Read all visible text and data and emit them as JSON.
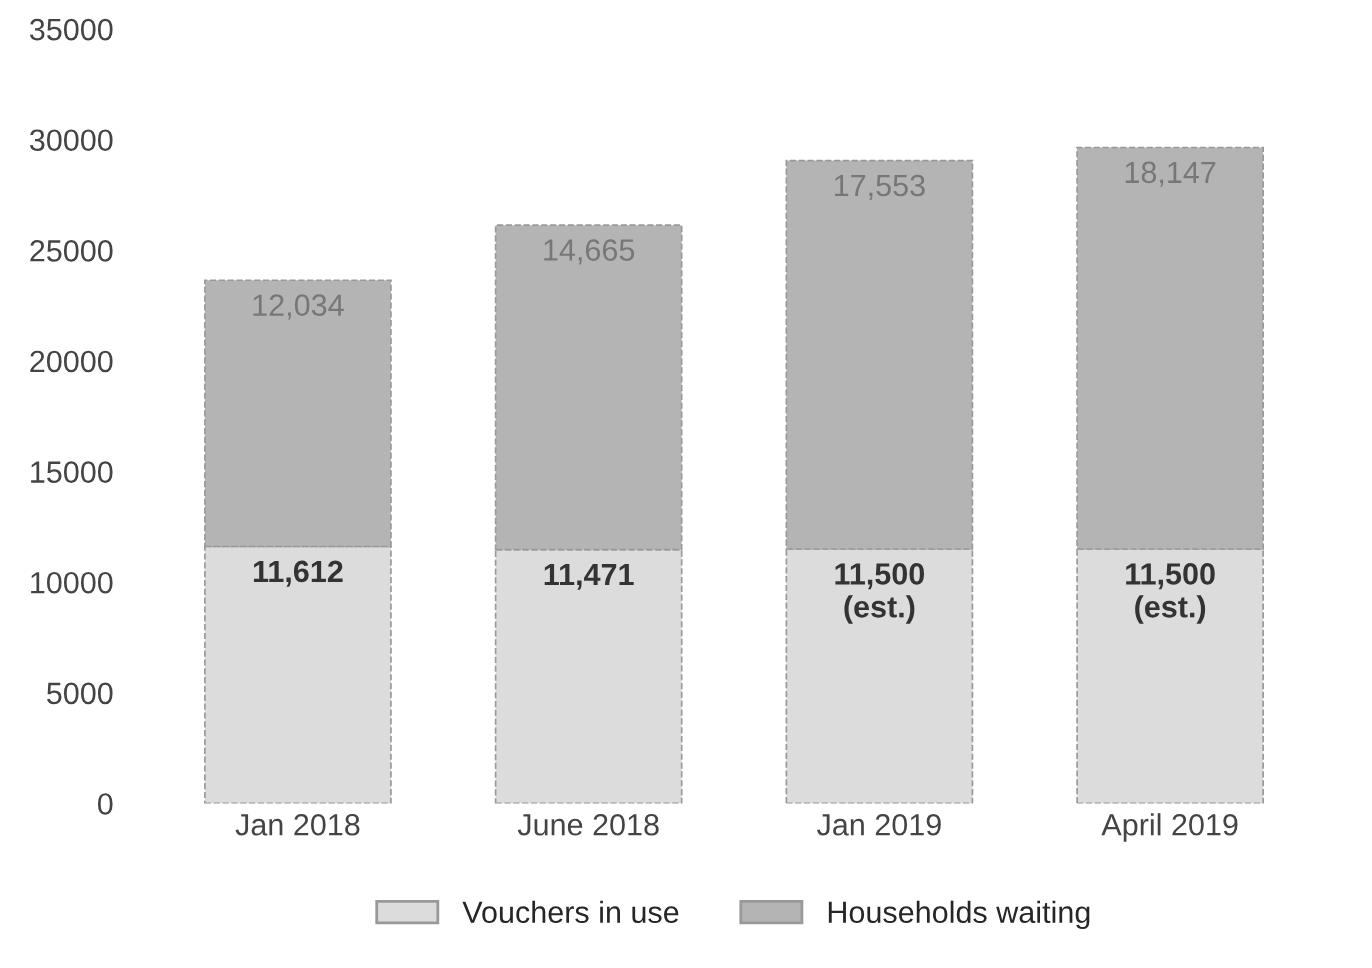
{
  "chart_data": {
    "type": "bar",
    "stacked": true,
    "categories": [
      "Jan 2018",
      "June 2018",
      "Jan 2019",
      "April 2019"
    ],
    "series": [
      {
        "name": "Vouchers in use",
        "color": "#dcdcdc",
        "values": [
          11612,
          11471,
          11500,
          11500
        ],
        "value_labels": [
          "11,612",
          "11,471",
          "11,500\n(est.)",
          "11,500\n(est.)"
        ]
      },
      {
        "name": "Households waiting",
        "color": "#b4b4b4",
        "values": [
          12034,
          14665,
          17553,
          18147
        ],
        "value_labels": [
          "12,034",
          "14,665",
          "17,553",
          "18,147"
        ]
      }
    ],
    "ylim": [
      0,
      35000
    ],
    "yticks": [
      0,
      5000,
      10000,
      15000,
      20000,
      25000,
      30000,
      35000
    ],
    "grid": false,
    "legend": "bottom"
  }
}
